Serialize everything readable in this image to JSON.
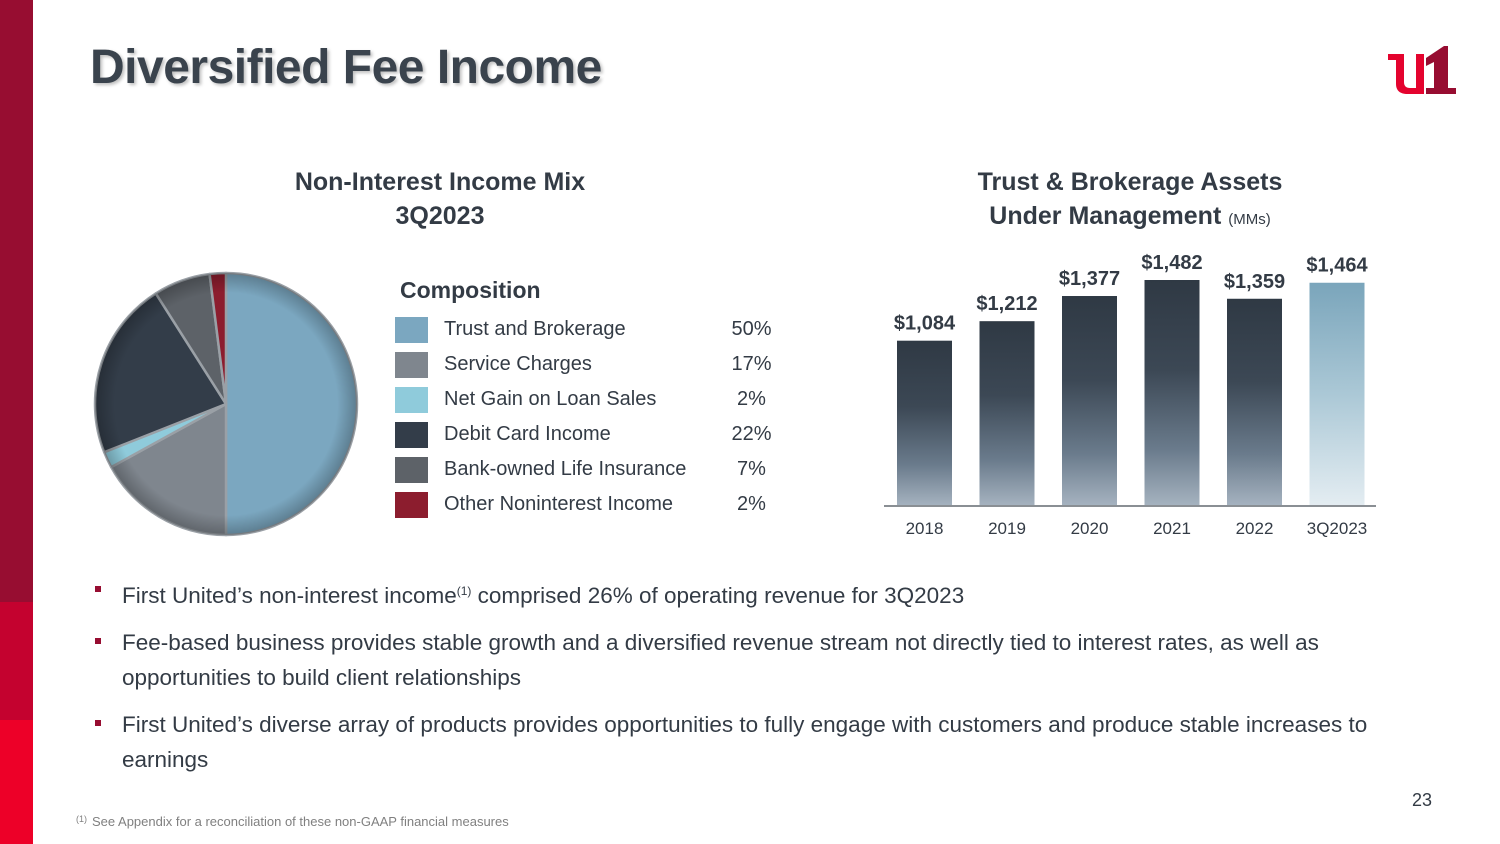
{
  "slide": {
    "title": "Diversified Fee Income",
    "page_number": "23",
    "logo": "first-united-u1-logo",
    "colors": {
      "brand_dark_red": "#970d31",
      "brand_red": "#c4022f",
      "brand_bright_red": "#ed0028",
      "text": "#333b45"
    }
  },
  "bullets": [
    {
      "before": "First United’s non-interest income",
      "sup": "(1)",
      "after": " comprised 26% of operating revenue for 3Q2023"
    },
    {
      "before": "Fee-based business provides stable growth and a diversified revenue stream not directly tied to interest rates, as well as opportunities to build client relationships",
      "sup": "",
      "after": ""
    },
    {
      "before": "First United’s diverse array of products provides opportunities to fully engage with customers and produce stable increases to earnings",
      "sup": "",
      "after": ""
    }
  ],
  "footnote": {
    "marker": "(1)",
    "text": "See Appendix for a reconciliation of these non-GAAP financial measures"
  },
  "chart_data": [
    {
      "type": "pie",
      "title": "Non-Interest Income Mix",
      "subtitle": "3Q2023",
      "legend_title": "Composition",
      "legend_placement": "right",
      "categories": [
        "Trust and Brokerage",
        "Service Charges",
        "Net Gain on Loan Sales",
        "Debit Card Income",
        "Bank-owned Life Insurance",
        "Other Noninterest Income"
      ],
      "values": [
        50,
        17,
        2,
        22,
        7,
        2
      ],
      "labels": [
        "50%",
        "17%",
        "2%",
        "22%",
        "7%",
        "2%"
      ],
      "colors": [
        "#7ba7c0",
        "#7f868e",
        "#8fcbdb",
        "#333d49",
        "#5d6268",
        "#8c1d2e"
      ],
      "unit": "%"
    },
    {
      "type": "bar",
      "title": "Trust & Brokerage Assets",
      "title_line2": "Under Management",
      "unit_label": "(MMs)",
      "categories": [
        "2018",
        "2019",
        "2020",
        "2021",
        "2022",
        "3Q2023"
      ],
      "values": [
        1084,
        1212,
        1377,
        1482,
        1359,
        1464
      ],
      "labels": [
        "$1,084",
        "$1,212",
        "$1,377",
        "$1,482",
        "$1,359",
        "$1,464"
      ],
      "highlight_index": 5,
      "ylim": [
        0,
        1482
      ],
      "grid": false,
      "xlabel": "",
      "ylabel": ""
    }
  ]
}
